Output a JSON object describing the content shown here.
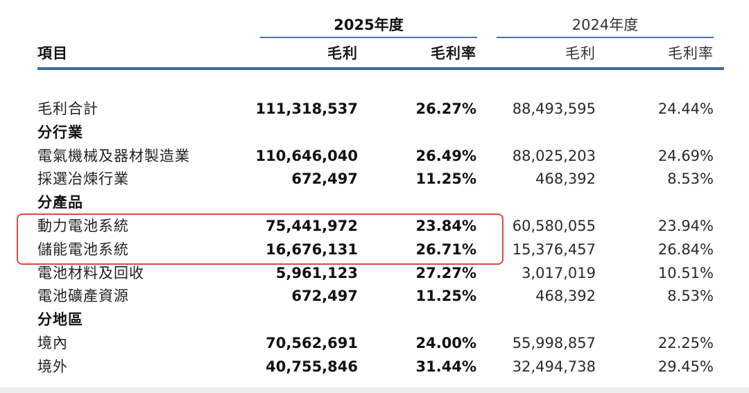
{
  "header": {
    "group_2025": "2025年度",
    "group_2024": "2024年度",
    "col_item": "項目",
    "col_gross_profit_2025": "毛利",
    "col_margin_2025": "毛利率",
    "col_gross_profit_2024": "毛利",
    "col_margin_2024": "毛利率"
  },
  "rows": [
    {
      "label": "毛利合計",
      "gp2025": "111,318,537",
      "m2025": "26.27%",
      "gp2024": "88,493,595",
      "m2024": "24.44%"
    },
    {
      "label": "分行業",
      "section": true
    },
    {
      "label": "電氣機械及器材製造業",
      "gp2025": "110,646,040",
      "m2025": "26.49%",
      "gp2024": "88,025,203",
      "m2024": "24.69%"
    },
    {
      "label": "採選冶煉行業",
      "gp2025": "672,497",
      "m2025": "11.25%",
      "gp2024": "468,392",
      "m2024": "8.53%"
    },
    {
      "label": "分產品",
      "section": true
    },
    {
      "label": "動力電池系統",
      "gp2025": "75,441,972",
      "m2025": "23.84%",
      "gp2024": "60,580,055",
      "m2024": "23.94%"
    },
    {
      "label": "儲能電池系統",
      "gp2025": "16,676,131",
      "m2025": "26.71%",
      "gp2024": "15,376,457",
      "m2024": "26.84%"
    },
    {
      "label": "電池材料及回收",
      "gp2025": "5,961,123",
      "m2025": "27.27%",
      "gp2024": "3,017,019",
      "m2024": "10.51%"
    },
    {
      "label": "電池礦產資源",
      "gp2025": "672,497",
      "m2025": "11.25%",
      "gp2024": "468,392",
      "m2024": "8.53%"
    },
    {
      "label": "分地區",
      "section": true
    },
    {
      "label": "境內",
      "gp2025": "70,562,691",
      "m2025": "24.00%",
      "gp2024": "55,998,857",
      "m2024": "22.25%"
    },
    {
      "label": "境外",
      "gp2025": "40,755,846",
      "m2025": "31.44%",
      "gp2024": "32,494,738",
      "m2024": "29.45%"
    }
  ],
  "colors": {
    "header_rule": "#3c68a8",
    "highlight_box": "#e0483e"
  }
}
